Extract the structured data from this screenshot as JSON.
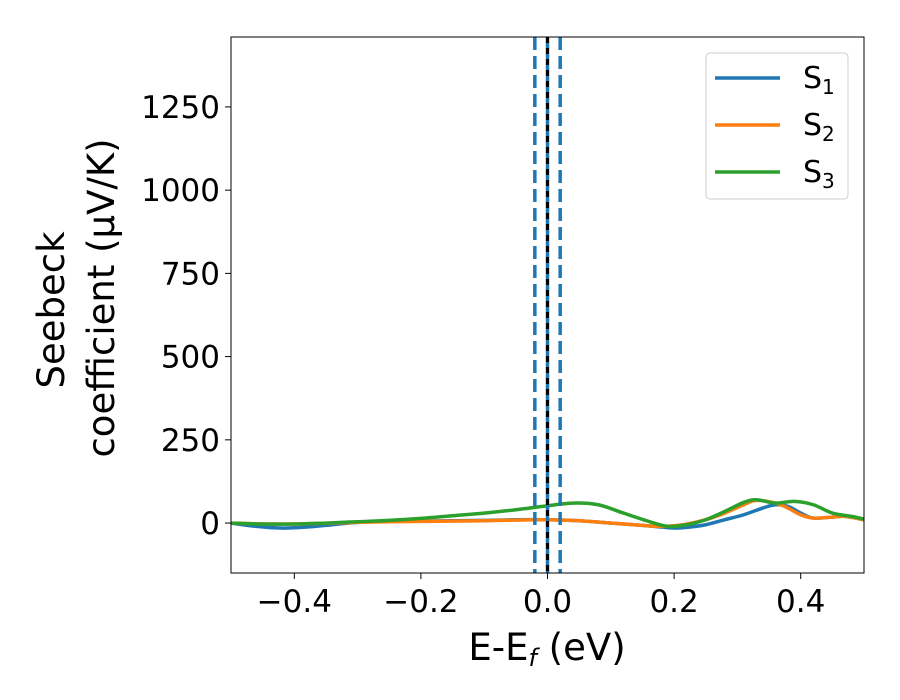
{
  "chart_data": {
    "type": "line",
    "xlabel": "E-E",
    "xlabel_sub": "f",
    "xlabel_unit": " (eV)",
    "ylabel_line1": "Seebeck",
    "ylabel_line2": "coefficient  (μV/K)",
    "xlim": [
      -0.5,
      0.5
    ],
    "ylim": [
      -150,
      1460
    ],
    "xticks": [
      -0.4,
      -0.2,
      0.0,
      0.2,
      0.4
    ],
    "xtick_labels": [
      "−0.4",
      "−0.2",
      "0.0",
      "0.2",
      "0.4"
    ],
    "yticks": [
      0,
      250,
      500,
      750,
      1000,
      1250
    ],
    "ytick_labels": [
      "0",
      "250",
      "500",
      "750",
      "1000",
      "1250"
    ],
    "legend_position": "top-right",
    "grid": false,
    "series": [
      {
        "name": "S",
        "name_sub": "1",
        "color": "#1f77b4",
        "x": [
          -0.5,
          -0.46,
          -0.42,
          -0.38,
          -0.34,
          -0.3,
          -0.25,
          -0.2,
          -0.15,
          -0.1,
          -0.05,
          0.0,
          0.05,
          0.1,
          0.15,
          0.18,
          0.2,
          0.22,
          0.25,
          0.28,
          0.31,
          0.34,
          0.36,
          0.38,
          0.4,
          0.42,
          0.45,
          0.47,
          0.5
        ],
        "y": [
          0,
          -10,
          -15,
          -12,
          -5,
          2,
          5,
          6,
          7,
          8,
          10,
          10,
          7,
          0,
          -7,
          -12,
          -15,
          -13,
          -5,
          10,
          25,
          45,
          55,
          50,
          30,
          15,
          18,
          20,
          10
        ]
      },
      {
        "name": "S",
        "name_sub": "2",
        "color": "#ff7f0e",
        "x": [
          -0.5,
          -0.46,
          -0.42,
          -0.38,
          -0.34,
          -0.3,
          -0.25,
          -0.2,
          -0.15,
          -0.1,
          -0.05,
          0.0,
          0.05,
          0.1,
          0.15,
          0.18,
          0.2,
          0.22,
          0.25,
          0.28,
          0.31,
          0.33,
          0.36,
          0.38,
          0.4,
          0.42,
          0.45,
          0.47,
          0.5
        ],
        "y": [
          0,
          -2,
          -3,
          -2,
          0,
          2,
          4,
          5,
          6,
          7,
          9,
          10,
          7,
          0,
          -7,
          -10,
          -8,
          -3,
          10,
          30,
          55,
          68,
          60,
          45,
          25,
          15,
          18,
          20,
          10
        ]
      },
      {
        "name": "S",
        "name_sub": "3",
        "color": "#2ca02c",
        "x": [
          -0.5,
          -0.45,
          -0.4,
          -0.35,
          -0.3,
          -0.25,
          -0.2,
          -0.15,
          -0.1,
          -0.05,
          0.0,
          0.04,
          0.08,
          0.12,
          0.16,
          0.19,
          0.22,
          0.25,
          0.28,
          0.31,
          0.33,
          0.36,
          0.39,
          0.42,
          0.45,
          0.48,
          0.5
        ],
        "y": [
          0,
          -3,
          -3,
          0,
          4,
          8,
          14,
          22,
          30,
          40,
          52,
          60,
          55,
          30,
          5,
          -10,
          -5,
          10,
          35,
          62,
          70,
          60,
          65,
          55,
          30,
          20,
          12
        ]
      }
    ],
    "vlines": [
      {
        "x": -0.02,
        "color": "#1f77b4",
        "style": "dashed"
      },
      {
        "x": 0.0,
        "color": "#1f77b4",
        "style": "solid"
      },
      {
        "x": 0.02,
        "color": "#1f77b4",
        "style": "dashed"
      },
      {
        "x": 0.0,
        "color": "#000000",
        "style": "dotted"
      }
    ]
  }
}
